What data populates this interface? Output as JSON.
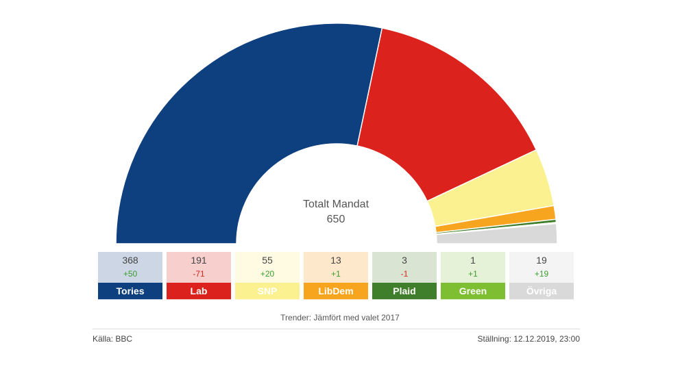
{
  "chart_data": {
    "type": "pie",
    "subtype": "half-donut parliament",
    "center_label": "Totalt Mandat",
    "total": "650",
    "series": [
      {
        "name": "Tories",
        "value": 368,
        "change": "+50",
        "color": "#0e3f7e",
        "tint": "#cdd6e5"
      },
      {
        "name": "Lab",
        "value": 191,
        "change": "-71",
        "color": "#dc221c",
        "tint": "#f7cfcd"
      },
      {
        "name": "SNP",
        "value": 55,
        "change": "+20",
        "color": "#fbf190",
        "tint": "#fefbe2"
      },
      {
        "name": "LibDem",
        "value": 13,
        "change": "+1",
        "color": "#f7a51e",
        "tint": "#fde8cb"
      },
      {
        "name": "Plaid",
        "value": 3,
        "change": "-1",
        "color": "#3f7e2a",
        "tint": "#d9e5d2"
      },
      {
        "name": "Green",
        "value": 1,
        "change": "+1",
        "color": "#7dbe32",
        "tint": "#e6f2d8"
      },
      {
        "name": "Övriga",
        "value": 19,
        "change": "+19",
        "color": "#d9d9d9",
        "tint": "#f4f4f4"
      }
    ]
  },
  "trend_note": "Trender: Jämfört med valet 2017",
  "source": "Källa: BBC",
  "status": "Ställning: 12.12.2019, 23:00"
}
